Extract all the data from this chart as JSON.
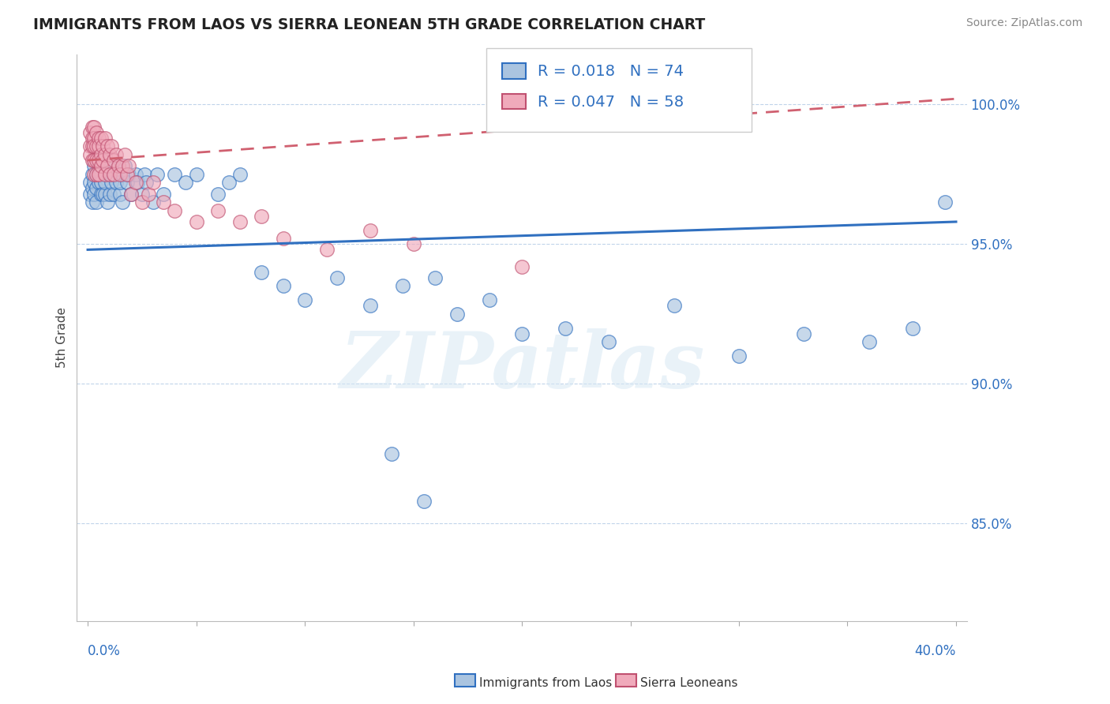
{
  "title": "IMMIGRANTS FROM LAOS VS SIERRA LEONEAN 5TH GRADE CORRELATION CHART",
  "source": "Source: ZipAtlas.com",
  "ylabel": "5th Grade",
  "ytick_labels": [
    "85.0%",
    "90.0%",
    "95.0%",
    "100.0%"
  ],
  "ytick_values": [
    0.85,
    0.9,
    0.95,
    1.0
  ],
  "xlim": [
    0.0,
    0.4
  ],
  "ylim": [
    0.815,
    1.018
  ],
  "legend_blue_r": "0.018",
  "legend_blue_n": "74",
  "legend_pink_r": "0.047",
  "legend_pink_n": "58",
  "legend_label_blue": "Immigrants from Laos",
  "legend_label_pink": "Sierra Leoneans",
  "blue_color": "#aac4e0",
  "pink_color": "#f0aabb",
  "trendline_blue_color": "#3070c0",
  "trendline_pink_color": "#d06070",
  "watermark_text": "ZIPatlas",
  "blue_x": [
    0.001,
    0.001,
    0.002,
    0.002,
    0.002,
    0.003,
    0.003,
    0.003,
    0.004,
    0.004,
    0.004,
    0.005,
    0.005,
    0.005,
    0.006,
    0.006,
    0.006,
    0.007,
    0.007,
    0.008,
    0.008,
    0.008,
    0.009,
    0.009,
    0.01,
    0.01,
    0.011,
    0.011,
    0.012,
    0.012,
    0.013,
    0.014,
    0.015,
    0.015,
    0.016,
    0.016,
    0.017,
    0.018,
    0.019,
    0.02,
    0.022,
    0.023,
    0.025,
    0.026,
    0.027,
    0.03,
    0.032,
    0.035,
    0.04,
    0.045,
    0.05,
    0.06,
    0.065,
    0.07,
    0.08,
    0.09,
    0.1,
    0.115,
    0.13,
    0.145,
    0.16,
    0.17,
    0.185,
    0.2,
    0.22,
    0.24,
    0.27,
    0.3,
    0.33,
    0.36,
    0.38,
    0.395,
    0.14,
    0.155
  ],
  "blue_y": [
    0.972,
    0.968,
    0.975,
    0.97,
    0.965,
    0.978,
    0.972,
    0.968,
    0.975,
    0.97,
    0.965,
    0.978,
    0.972,
    0.98,
    0.975,
    0.968,
    0.972,
    0.98,
    0.968,
    0.975,
    0.968,
    0.972,
    0.978,
    0.965,
    0.975,
    0.968,
    0.972,
    0.978,
    0.968,
    0.975,
    0.972,
    0.978,
    0.968,
    0.972,
    0.975,
    0.965,
    0.978,
    0.972,
    0.975,
    0.968,
    0.975,
    0.972,
    0.968,
    0.975,
    0.972,
    0.965,
    0.975,
    0.968,
    0.975,
    0.972,
    0.975,
    0.968,
    0.972,
    0.975,
    0.94,
    0.935,
    0.93,
    0.938,
    0.928,
    0.935,
    0.938,
    0.925,
    0.93,
    0.918,
    0.92,
    0.915,
    0.928,
    0.91,
    0.918,
    0.915,
    0.92,
    0.965,
    0.875,
    0.858
  ],
  "pink_x": [
    0.001,
    0.001,
    0.001,
    0.002,
    0.002,
    0.002,
    0.002,
    0.003,
    0.003,
    0.003,
    0.003,
    0.003,
    0.004,
    0.004,
    0.004,
    0.004,
    0.005,
    0.005,
    0.005,
    0.005,
    0.006,
    0.006,
    0.006,
    0.007,
    0.007,
    0.008,
    0.008,
    0.008,
    0.009,
    0.009,
    0.01,
    0.01,
    0.011,
    0.012,
    0.012,
    0.013,
    0.014,
    0.015,
    0.016,
    0.017,
    0.018,
    0.019,
    0.02,
    0.022,
    0.025,
    0.028,
    0.03,
    0.035,
    0.04,
    0.05,
    0.06,
    0.07,
    0.08,
    0.09,
    0.11,
    0.13,
    0.15,
    0.2
  ],
  "pink_y": [
    0.99,
    0.985,
    0.982,
    0.992,
    0.988,
    0.985,
    0.98,
    0.992,
    0.988,
    0.985,
    0.98,
    0.975,
    0.99,
    0.985,
    0.98,
    0.975,
    0.988,
    0.985,
    0.98,
    0.975,
    0.988,
    0.982,
    0.978,
    0.985,
    0.98,
    0.988,
    0.982,
    0.975,
    0.985,
    0.978,
    0.982,
    0.975,
    0.985,
    0.98,
    0.975,
    0.982,
    0.978,
    0.975,
    0.978,
    0.982,
    0.975,
    0.978,
    0.968,
    0.972,
    0.965,
    0.968,
    0.972,
    0.965,
    0.962,
    0.958,
    0.962,
    0.958,
    0.96,
    0.952,
    0.948,
    0.955,
    0.95,
    0.942
  ],
  "blue_trend_x": [
    0.0,
    0.4
  ],
  "blue_trend_y": [
    0.948,
    0.958
  ],
  "pink_trend_x": [
    0.0,
    0.4
  ],
  "pink_trend_y": [
    0.98,
    1.002
  ]
}
